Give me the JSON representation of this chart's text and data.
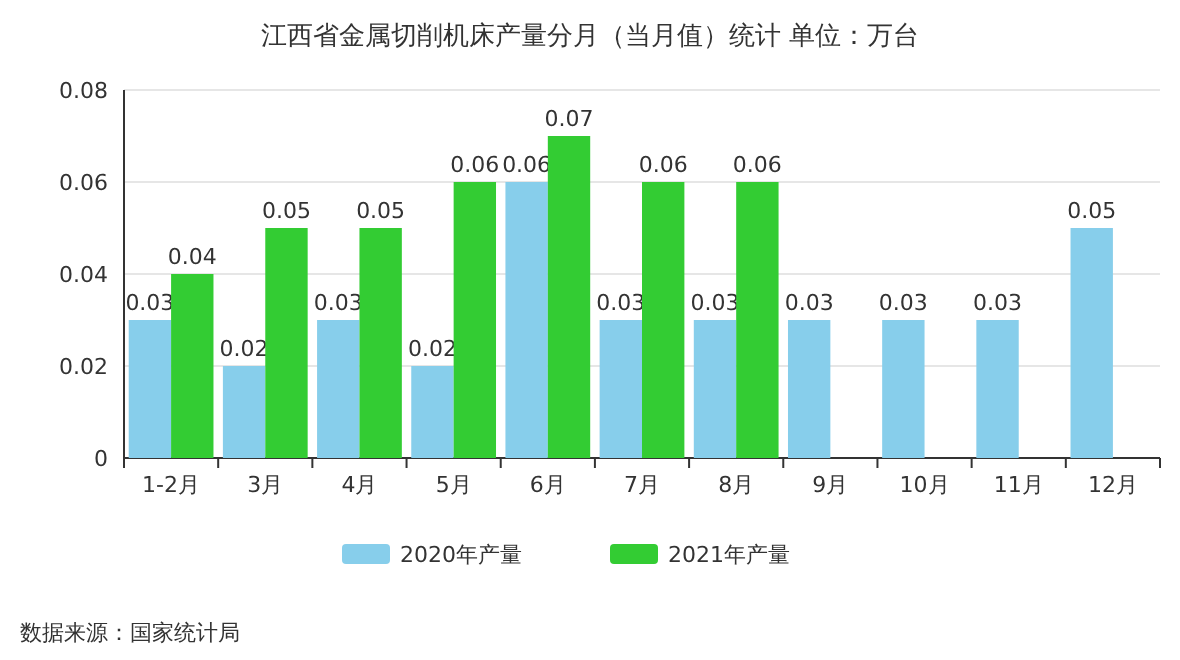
{
  "chart_data": {
    "type": "bar",
    "title": "江西省金属切削机床产量分月（当月值）统计 单位：万台",
    "categories": [
      "1-2月",
      "3月",
      "4月",
      "5月",
      "6月",
      "7月",
      "8月",
      "9月",
      "10月",
      "11月",
      "12月"
    ],
    "series": [
      {
        "name": "2020年产量",
        "color": "#87ceeb",
        "values": [
          0.03,
          0.02,
          0.03,
          0.02,
          0.06,
          0.03,
          0.03,
          0.03,
          0.03,
          0.03,
          0.05
        ]
      },
      {
        "name": "2021年产量",
        "color": "#33cc33",
        "values": [
          0.04,
          0.05,
          0.05,
          0.06,
          0.07,
          0.06,
          0.06,
          null,
          null,
          null,
          null
        ]
      }
    ],
    "ylim": [
      0,
      0.08
    ],
    "yticks": [
      0,
      0.02,
      0.04,
      0.06,
      0.08
    ],
    "grid": "y",
    "legend": "bottom",
    "data_labels": true,
    "annotations": [
      "数据来源：国家统计局"
    ]
  }
}
